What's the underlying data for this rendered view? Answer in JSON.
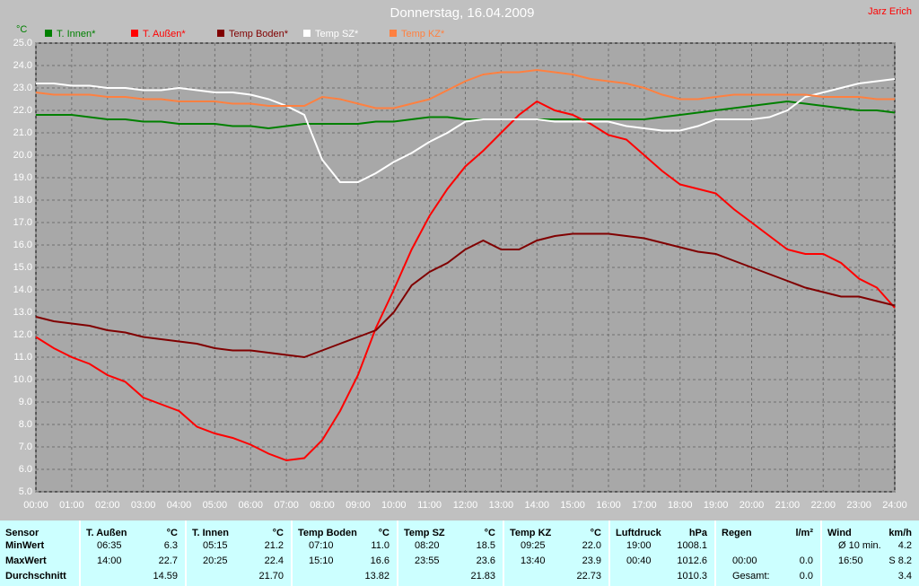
{
  "chart_data": {
    "type": "line",
    "title": "Donnerstag, 16.04.2009",
    "author": "Jarz Erich",
    "y_label": "°C",
    "grid": true,
    "x": [
      0,
      0.5,
      1,
      1.5,
      2,
      2.5,
      3,
      3.5,
      4,
      4.5,
      5,
      5.5,
      6,
      6.5,
      7,
      7.5,
      8,
      8.5,
      9,
      9.5,
      10,
      10.5,
      11,
      11.5,
      12,
      12.5,
      13,
      13.5,
      14,
      14.5,
      15,
      15.5,
      16,
      16.5,
      17,
      17.5,
      18,
      18.5,
      19,
      19.5,
      20,
      20.5,
      21,
      21.5,
      22,
      22.5,
      23,
      23.5,
      24
    ],
    "xlim": [
      0,
      24
    ],
    "xticks": [
      {
        "value": 0,
        "label": "00:00"
      },
      {
        "value": 1,
        "label": "01:00"
      },
      {
        "value": 2,
        "label": "02:00"
      },
      {
        "value": 3,
        "label": "03:00"
      },
      {
        "value": 4,
        "label": "04:00"
      },
      {
        "value": 5,
        "label": "05:00"
      },
      {
        "value": 6,
        "label": "06:00"
      },
      {
        "value": 7,
        "label": "07:00"
      },
      {
        "value": 8,
        "label": "08:00"
      },
      {
        "value": 9,
        "label": "09:00"
      },
      {
        "value": 10,
        "label": "10:00"
      },
      {
        "value": 11,
        "label": "11:00"
      },
      {
        "value": 12,
        "label": "12:00"
      },
      {
        "value": 13,
        "label": "13:00"
      },
      {
        "value": 14,
        "label": "14:00"
      },
      {
        "value": 15,
        "label": "15:00"
      },
      {
        "value": 16,
        "label": "16:00"
      },
      {
        "value": 17,
        "label": "17:00"
      },
      {
        "value": 18,
        "label": "18:00"
      },
      {
        "value": 19,
        "label": "19:00"
      },
      {
        "value": 20,
        "label": "20:00"
      },
      {
        "value": 21,
        "label": "21:00"
      },
      {
        "value": 22,
        "label": "22:00"
      },
      {
        "value": 23,
        "label": "23:00"
      },
      {
        "value": 24,
        "label": "24:00"
      }
    ],
    "ylim": [
      5,
      25
    ],
    "yticks": [
      {
        "value": 5,
        "label": "5.0"
      },
      {
        "value": 6,
        "label": "6.0"
      },
      {
        "value": 7,
        "label": "7.0"
      },
      {
        "value": 8,
        "label": "8.0"
      },
      {
        "value": 9,
        "label": "9.0"
      },
      {
        "value": 10,
        "label": "10.0"
      },
      {
        "value": 11,
        "label": "11.0"
      },
      {
        "value": 12,
        "label": "12.0"
      },
      {
        "value": 13,
        "label": "13.0"
      },
      {
        "value": 14,
        "label": "14.0"
      },
      {
        "value": 15,
        "label": "15.0"
      },
      {
        "value": 16,
        "label": "16.0"
      },
      {
        "value": 17,
        "label": "17.0"
      },
      {
        "value": 18,
        "label": "18.0"
      },
      {
        "value": 19,
        "label": "19.0"
      },
      {
        "value": 20,
        "label": "20.0"
      },
      {
        "value": 21,
        "label": "21.0"
      },
      {
        "value": 22,
        "label": "22.0"
      },
      {
        "value": 23,
        "label": "23.0"
      },
      {
        "value": 24,
        "label": "24.0"
      },
      {
        "value": 25,
        "label": "25.0"
      }
    ],
    "series": [
      {
        "name": "T. Innen*",
        "color": "#008000",
        "values": [
          21.8,
          21.8,
          21.8,
          21.7,
          21.6,
          21.6,
          21.5,
          21.5,
          21.4,
          21.4,
          21.4,
          21.3,
          21.3,
          21.2,
          21.3,
          21.4,
          21.4,
          21.4,
          21.4,
          21.5,
          21.5,
          21.6,
          21.7,
          21.7,
          21.6,
          21.6,
          21.6,
          21.6,
          21.6,
          21.6,
          21.6,
          21.6,
          21.6,
          21.6,
          21.6,
          21.7,
          21.8,
          21.9,
          22.0,
          22.1,
          22.2,
          22.3,
          22.4,
          22.3,
          22.2,
          22.1,
          22.0,
          22.0,
          21.9
        ]
      },
      {
        "name": "T. Außen*",
        "color": "#ff0000",
        "values": [
          11.9,
          11.4,
          11.0,
          10.7,
          10.2,
          9.9,
          9.2,
          8.9,
          8.6,
          7.9,
          7.6,
          7.4,
          7.1,
          6.7,
          6.4,
          6.5,
          7.3,
          8.6,
          10.2,
          12.3,
          14.0,
          15.8,
          17.3,
          18.5,
          19.5,
          20.2,
          21.0,
          21.8,
          22.4,
          22.0,
          21.8,
          21.4,
          20.9,
          20.7,
          20.0,
          19.3,
          18.7,
          18.5,
          18.3,
          17.6,
          17.0,
          16.4,
          15.8,
          15.6,
          15.6,
          15.2,
          14.5,
          14.1,
          13.2
        ]
      },
      {
        "name": "Temp Boden*",
        "color": "#800000",
        "values": [
          12.8,
          12.6,
          12.5,
          12.4,
          12.2,
          12.1,
          11.9,
          11.8,
          11.7,
          11.6,
          11.4,
          11.3,
          11.3,
          11.2,
          11.1,
          11.0,
          11.3,
          11.6,
          11.9,
          12.2,
          13.0,
          14.2,
          14.8,
          15.2,
          15.8,
          16.2,
          15.8,
          15.8,
          16.2,
          16.4,
          16.5,
          16.5,
          16.5,
          16.4,
          16.3,
          16.1,
          15.9,
          15.7,
          15.6,
          15.3,
          15.0,
          14.7,
          14.4,
          14.1,
          13.9,
          13.7,
          13.7,
          13.5,
          13.3
        ]
      },
      {
        "name": "Temp SZ*",
        "color": "#ffffff",
        "values": [
          23.2,
          23.2,
          23.1,
          23.1,
          23.0,
          23.0,
          22.9,
          22.9,
          23.0,
          22.9,
          22.8,
          22.8,
          22.7,
          22.5,
          22.2,
          21.8,
          19.8,
          18.8,
          18.8,
          19.2,
          19.7,
          20.1,
          20.6,
          21.0,
          21.5,
          21.6,
          21.6,
          21.6,
          21.6,
          21.5,
          21.5,
          21.5,
          21.5,
          21.3,
          21.2,
          21.1,
          21.1,
          21.3,
          21.6,
          21.6,
          21.6,
          21.7,
          22.0,
          22.6,
          22.8,
          23.0,
          23.2,
          23.3,
          23.4
        ]
      },
      {
        "name": "Temp KZ*",
        "color": "#ff8040",
        "values": [
          22.8,
          22.7,
          22.7,
          22.7,
          22.6,
          22.6,
          22.5,
          22.5,
          22.4,
          22.4,
          22.4,
          22.3,
          22.3,
          22.2,
          22.2,
          22.2,
          22.6,
          22.5,
          22.3,
          22.1,
          22.1,
          22.3,
          22.5,
          22.9,
          23.3,
          23.6,
          23.7,
          23.7,
          23.8,
          23.7,
          23.6,
          23.4,
          23.3,
          23.2,
          23.0,
          22.7,
          22.5,
          22.5,
          22.6,
          22.7,
          22.7,
          22.7,
          22.7,
          22.7,
          22.6,
          22.6,
          22.6,
          22.5,
          22.5
        ]
      }
    ]
  },
  "table": {
    "header": "Sensor",
    "row_labels": [
      "MinWert",
      "MaxWert",
      "Durchschnitt"
    ],
    "columns": [
      {
        "name": "T. Außen",
        "unit": "°C",
        "cells": [
          [
            "06:35",
            "6.3"
          ],
          [
            "14:00",
            "22.7"
          ],
          [
            null,
            "14.59"
          ]
        ]
      },
      {
        "name": "T. Innen",
        "unit": "°C",
        "cells": [
          [
            "05:15",
            "21.2"
          ],
          [
            "20:25",
            "22.4"
          ],
          [
            null,
            "21.70"
          ]
        ]
      },
      {
        "name": "Temp Boden",
        "unit": "°C",
        "cells": [
          [
            "07:10",
            "11.0"
          ],
          [
            "15:10",
            "16.6"
          ],
          [
            null,
            "13.82"
          ]
        ]
      },
      {
        "name": "Temp SZ",
        "unit": "°C",
        "cells": [
          [
            "08:20",
            "18.5"
          ],
          [
            "23:55",
            "23.6"
          ],
          [
            null,
            "21.83"
          ]
        ]
      },
      {
        "name": "Temp KZ",
        "unit": "°C",
        "cells": [
          [
            "09:25",
            "22.0"
          ],
          [
            "13:40",
            "23.9"
          ],
          [
            null,
            "22.73"
          ]
        ]
      },
      {
        "name": "Luftdruck",
        "unit": "hPa",
        "cells": [
          [
            "19:00",
            "1008.1"
          ],
          [
            "00:40",
            "1012.6"
          ],
          [
            null,
            "1010.3"
          ]
        ]
      },
      {
        "name": "Regen",
        "unit": "l/m²",
        "cells": [
          [
            null,
            null
          ],
          [
            "00:00",
            "0.0"
          ],
          [
            "Gesamt:",
            "0.0"
          ]
        ]
      },
      {
        "name": "Wind",
        "unit": "km/h",
        "cells": [
          [
            "Ø 10 min.",
            "4.2"
          ],
          [
            "16:50",
            "S 8.2"
          ],
          [
            null,
            "3.4"
          ]
        ]
      }
    ]
  }
}
